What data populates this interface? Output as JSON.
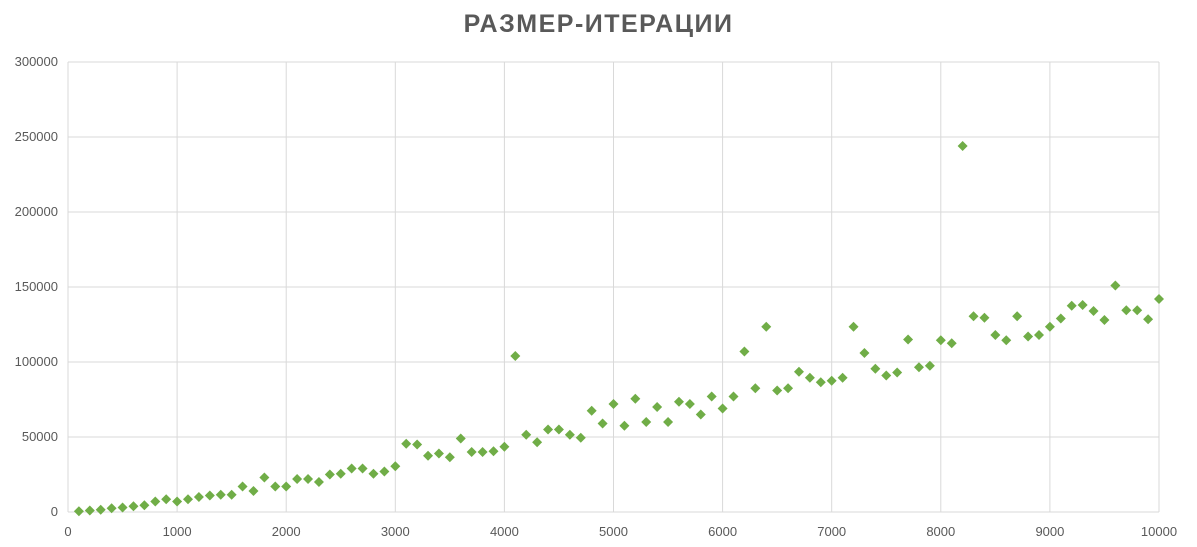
{
  "chart_data": {
    "type": "scatter",
    "title": "РАЗМЕР-ИТЕРАЦИИ",
    "xlabel": "",
    "ylabel": "",
    "xlim": [
      0,
      10000
    ],
    "ylim": [
      0,
      300000
    ],
    "x_ticks": [
      "0",
      "1000",
      "2000",
      "3000",
      "4000",
      "5000",
      "6000",
      "7000",
      "8000",
      "9000",
      "10000"
    ],
    "y_ticks": [
      "0",
      "50000",
      "100000",
      "150000",
      "200000",
      "250000",
      "300000"
    ],
    "grid": true,
    "legend": "none",
    "marker": "diamond",
    "color": "#70AD47",
    "series": [
      {
        "points": [
          [
            100,
            500
          ],
          [
            200,
            1000
          ],
          [
            300,
            1500
          ],
          [
            400,
            2500
          ],
          [
            500,
            3000
          ],
          [
            600,
            3800
          ],
          [
            700,
            4500
          ],
          [
            800,
            7000
          ],
          [
            900,
            8500
          ],
          [
            1000,
            7000
          ],
          [
            1100,
            8500
          ],
          [
            1200,
            10000
          ],
          [
            1300,
            11000
          ],
          [
            1400,
            11500
          ],
          [
            1500,
            11500
          ],
          [
            1600,
            17000
          ],
          [
            1700,
            14000
          ],
          [
            1800,
            23000
          ],
          [
            1900,
            17000
          ],
          [
            2000,
            17000
          ],
          [
            2100,
            22000
          ],
          [
            2200,
            22000
          ],
          [
            2300,
            20000
          ],
          [
            2400,
            25000
          ],
          [
            2500,
            25500
          ],
          [
            2600,
            29000
          ],
          [
            2700,
            29000
          ],
          [
            2800,
            25500
          ],
          [
            2900,
            27000
          ],
          [
            3000,
            30500
          ],
          [
            3100,
            45500
          ],
          [
            3200,
            45000
          ],
          [
            3300,
            37500
          ],
          [
            3400,
            39000
          ],
          [
            3500,
            36500
          ],
          [
            3600,
            49000
          ],
          [
            3700,
            40000
          ],
          [
            3800,
            40000
          ],
          [
            3900,
            40500
          ],
          [
            4000,
            43500
          ],
          [
            4100,
            104000
          ],
          [
            4200,
            51500
          ],
          [
            4300,
            46500
          ],
          [
            4400,
            55000
          ],
          [
            4500,
            55000
          ],
          [
            4600,
            51500
          ],
          [
            4700,
            49500
          ],
          [
            4800,
            67500
          ],
          [
            4900,
            59000
          ],
          [
            5000,
            72000
          ],
          [
            5100,
            57500
          ],
          [
            5200,
            75500
          ],
          [
            5300,
            60000
          ],
          [
            5400,
            70000
          ],
          [
            5500,
            60000
          ],
          [
            5600,
            73500
          ],
          [
            5700,
            72000
          ],
          [
            5800,
            65000
          ],
          [
            5900,
            77000
          ],
          [
            6000,
            69000
          ],
          [
            6100,
            77000
          ],
          [
            6200,
            107000
          ],
          [
            6300,
            82500
          ],
          [
            6400,
            123500
          ],
          [
            6500,
            81000
          ],
          [
            6600,
            82500
          ],
          [
            6700,
            93500
          ],
          [
            6800,
            89500
          ],
          [
            6900,
            86500
          ],
          [
            7000,
            87500
          ],
          [
            7100,
            89500
          ],
          [
            7200,
            123500
          ],
          [
            7300,
            106000
          ],
          [
            7400,
            95500
          ],
          [
            7500,
            91000
          ],
          [
            7600,
            93000
          ],
          [
            7700,
            115000
          ],
          [
            7800,
            96500
          ],
          [
            7900,
            97500
          ],
          [
            8000,
            114500
          ],
          [
            8100,
            112500
          ],
          [
            8200,
            244000
          ],
          [
            8300,
            130500
          ],
          [
            8400,
            129500
          ],
          [
            8500,
            118000
          ],
          [
            8600,
            114500
          ],
          [
            8700,
            130500
          ],
          [
            8800,
            117000
          ],
          [
            8900,
            118000
          ],
          [
            9000,
            123500
          ],
          [
            9100,
            129000
          ],
          [
            9200,
            137500
          ],
          [
            9300,
            138000
          ],
          [
            9400,
            134000
          ],
          [
            9500,
            128000
          ],
          [
            9600,
            151000
          ],
          [
            9700,
            134500
          ],
          [
            9800,
            134500
          ],
          [
            9900,
            128500
          ],
          [
            10000,
            142000
          ]
        ]
      }
    ]
  }
}
